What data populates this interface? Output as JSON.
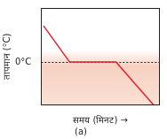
{
  "chart_data": {
    "type": "line",
    "x_label": "समय (मिनट) →",
    "y_label": "तापमान (°C)",
    "subtitle": "(a)",
    "x": [
      0.2,
      2.4,
      6.3,
      9.5
    ],
    "values": [
      6.7,
      0,
      0,
      -8
    ],
    "color": "#e8202a",
    "xlim": [
      0,
      10
    ],
    "ylim": [
      -8,
      10
    ],
    "xticks": [],
    "yticks": [
      {
        "value": 0,
        "label": "0°C"
      }
    ],
    "grid": true,
    "line_style": "solid",
    "tick_labels": "y"
  }
}
